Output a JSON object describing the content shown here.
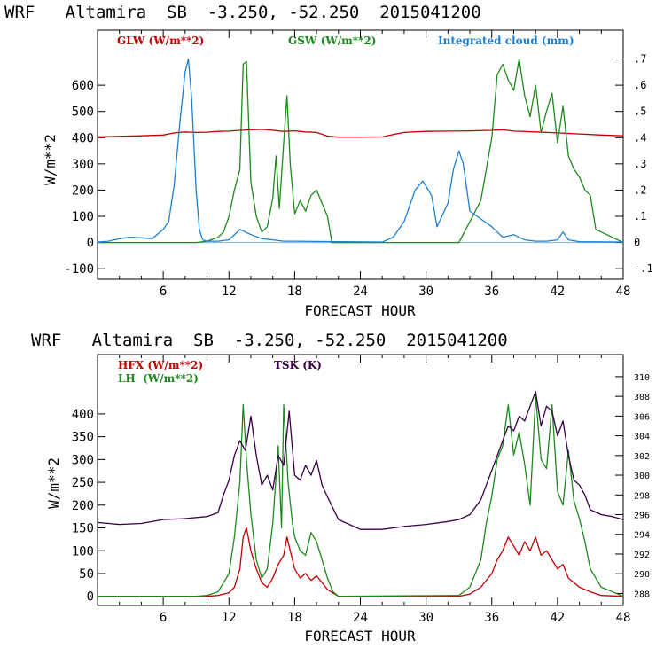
{
  "colors": {
    "red": "#c00000",
    "green": "#1c8a1c",
    "blue": "#1f7fd0",
    "purple": "#3a0045"
  },
  "chart_data": [
    {
      "type": "line",
      "title": "WRF   Altamira  SB  -3.250, -52.250  2015041200",
      "xlabel": "FORECAST HOUR",
      "ylabel": "W/m**2",
      "xlim": [
        0,
        48
      ],
      "ylim": [
        -140,
        810
      ],
      "y2lim": [
        -0.14,
        0.81
      ],
      "xticks": [
        6,
        12,
        18,
        24,
        30,
        36,
        42,
        48
      ],
      "yticks": [
        -100,
        0,
        100,
        200,
        300,
        400,
        500,
        600
      ],
      "y2ticks": [
        -0.1,
        0,
        0.1,
        0.2,
        0.3,
        0.4,
        0.5,
        0.6,
        0.7
      ],
      "y2ticklabels": [
        "-.1",
        "0",
        ".1",
        ".2",
        ".3",
        ".4",
        ".5",
        ".6",
        ".7"
      ],
      "xticklabels": [
        "6",
        "12",
        "18",
        "24",
        "30",
        "36",
        "42",
        "48"
      ],
      "yticklabels": [
        "-100",
        "0",
        "100",
        "200",
        "300",
        "400",
        "500",
        "600"
      ],
      "legend": [
        {
          "label": "GLW (W/m**2)",
          "color": "#c00000"
        },
        {
          "label": "GSW (W/m**2)",
          "color": "#1c8a1c"
        },
        {
          "label": "Integrated cloud (mm)",
          "color": "#1f7fd0"
        }
      ],
      "series": [
        {
          "name": "GLW (W/m**2)",
          "axis": "left",
          "color": "#c00000",
          "x": [
            0,
            2,
            4,
            6,
            7,
            8,
            9,
            10,
            11,
            12,
            13,
            14,
            15,
            16,
            17,
            18,
            19,
            20,
            21,
            22,
            24,
            26,
            27,
            28,
            30,
            32,
            34,
            36,
            37,
            38,
            40,
            42,
            44,
            46,
            48
          ],
          "y": [
            403,
            405,
            407,
            410,
            418,
            422,
            420,
            421,
            424,
            425,
            428,
            430,
            432,
            428,
            424,
            426,
            422,
            420,
            406,
            402,
            402,
            403,
            412,
            420,
            424,
            425,
            426,
            428,
            430,
            425,
            422,
            418,
            414,
            410,
            407
          ]
        },
        {
          "name": "GSW (W/m**2)",
          "axis": "left",
          "color": "#1c8a1c",
          "x": [
            0,
            9,
            10,
            11,
            11.5,
            12,
            12.5,
            13,
            13.3,
            13.6,
            14,
            14.5,
            15,
            15.5,
            16,
            16.3,
            16.6,
            17,
            17.3,
            17.6,
            18,
            18.5,
            19,
            19.5,
            20,
            20.5,
            21,
            21.4,
            22,
            33,
            35,
            36,
            36.5,
            37,
            37.5,
            38,
            38.5,
            39,
            39.5,
            40,
            40.5,
            41,
            41.5,
            42,
            42.5,
            43,
            43.5,
            44,
            44.5,
            45,
            45.5,
            48
          ],
          "y": [
            0,
            0,
            5,
            20,
            40,
            100,
            200,
            280,
            680,
            690,
            230,
            100,
            40,
            60,
            170,
            330,
            130,
            380,
            560,
            300,
            110,
            160,
            120,
            180,
            200,
            150,
            100,
            0,
            0,
            0,
            160,
            400,
            640,
            680,
            620,
            580,
            700,
            560,
            480,
            600,
            420,
            500,
            570,
            380,
            520,
            330,
            280,
            250,
            200,
            180,
            50,
            0
          ]
        },
        {
          "name": "Integrated cloud (mm)",
          "axis": "right",
          "color": "#1f7fd0",
          "x": [
            0,
            1,
            2,
            3,
            4,
            5,
            6,
            6.5,
            7,
            7.5,
            8,
            8.3,
            8.6,
            9,
            9.3,
            9.6,
            10,
            11,
            12,
            13,
            14,
            15,
            16,
            17,
            18,
            20,
            22,
            26,
            27,
            28,
            29,
            29.7,
            30.5,
            31,
            32,
            32.5,
            33,
            33.4,
            34,
            35,
            36,
            37,
            38,
            39,
            40,
            41,
            42,
            42.5,
            43,
            44,
            48
          ],
          "y": [
            0.002,
            0.005,
            0.015,
            0.02,
            0.018,
            0.015,
            0.05,
            0.08,
            0.22,
            0.45,
            0.65,
            0.7,
            0.55,
            0.2,
            0.05,
            0.01,
            0.005,
            0.005,
            0.01,
            0.05,
            0.03,
            0.015,
            0.01,
            0.005,
            0.005,
            0.004,
            0.003,
            0.002,
            0.02,
            0.08,
            0.2,
            0.235,
            0.18,
            0.06,
            0.15,
            0.28,
            0.35,
            0.3,
            0.12,
            0.09,
            0.06,
            0.02,
            0.03,
            0.01,
            0.005,
            0.005,
            0.01,
            0.04,
            0.01,
            0.003,
            0.002
          ]
        }
      ]
    },
    {
      "type": "line",
      "title": "WRF   Altamira  SB  -3.250, -52.250  2015041200",
      "xlabel": "FORECAST HOUR",
      "ylabel": "W/m**2",
      "xlim": [
        0,
        48
      ],
      "ylim": [
        -20,
        530
      ],
      "y2lim": [
        286.78,
        312.24
      ],
      "xticks": [
        6,
        12,
        18,
        24,
        30,
        36,
        42,
        48
      ],
      "yticks": [
        0,
        50,
        100,
        150,
        200,
        250,
        300,
        350,
        400
      ],
      "y2ticks": [
        288,
        290,
        292,
        294,
        296,
        298,
        300,
        302,
        304,
        306,
        308,
        310
      ],
      "xticklabels": [
        "6",
        "12",
        "18",
        "24",
        "30",
        "36",
        "42",
        "48"
      ],
      "yticklabels": [
        "0",
        "50",
        "100",
        "150",
        "200",
        "250",
        "300",
        "350",
        "400"
      ],
      "y2ticklabels": [
        "288",
        "290",
        "292",
        "294",
        "296",
        "298",
        "300",
        "302",
        "304",
        "306",
        "308",
        "310"
      ],
      "legend": [
        {
          "label": "HFX (W/m**2)",
          "color": "#c00000"
        },
        {
          "label": "LH  (W/m**2)",
          "color": "#1c8a1c"
        },
        {
          "label": "TSK (K)",
          "color": "#3a0045"
        }
      ],
      "series": [
        {
          "name": "HFX (W/m**2)",
          "axis": "left",
          "color": "#c00000",
          "x": [
            0,
            10,
            11,
            12,
            12.5,
            13,
            13.3,
            13.6,
            14,
            14.5,
            15,
            15.5,
            16,
            16.5,
            17,
            17.3,
            17.6,
            18,
            18.5,
            19,
            19.5,
            20,
            20.5,
            21,
            22,
            33,
            34,
            35,
            36,
            36.5,
            37,
            37.5,
            38,
            38.5,
            39,
            39.5,
            40,
            40.5,
            41,
            41.5,
            42,
            42.5,
            43,
            43.5,
            44,
            45,
            46,
            48
          ],
          "y": [
            0,
            0,
            2,
            8,
            20,
            60,
            130,
            150,
            100,
            60,
            30,
            20,
            40,
            70,
            90,
            130,
            100,
            60,
            40,
            50,
            35,
            45,
            30,
            15,
            0,
            0,
            5,
            20,
            50,
            80,
            100,
            130,
            110,
            90,
            120,
            100,
            130,
            90,
            100,
            80,
            60,
            70,
            40,
            30,
            20,
            10,
            2,
            0
          ]
        },
        {
          "name": "LH  (W/m**2)",
          "axis": "left",
          "color": "#1c8a1c",
          "x": [
            0,
            9,
            10,
            11,
            11.5,
            12,
            12.5,
            13,
            13.3,
            13.6,
            14,
            14.5,
            15,
            15.5,
            16,
            16.5,
            16.8,
            17,
            17.4,
            17.8,
            18,
            18.5,
            19,
            19.5,
            20,
            20.5,
            21,
            21.5,
            22,
            33,
            34,
            35,
            35.5,
            36,
            36.5,
            37,
            37.5,
            38,
            38.5,
            39,
            39.5,
            40,
            40.5,
            41,
            41.5,
            42,
            42.5,
            43,
            43.5,
            44,
            44.5,
            45,
            46,
            48
          ],
          "y": [
            0,
            0,
            2,
            10,
            30,
            50,
            130,
            250,
            420,
            300,
            180,
            80,
            40,
            60,
            160,
            330,
            150,
            420,
            250,
            160,
            130,
            100,
            90,
            140,
            120,
            80,
            40,
            10,
            0,
            2,
            20,
            80,
            160,
            220,
            300,
            330,
            420,
            310,
            360,
            290,
            200,
            440,
            300,
            280,
            420,
            230,
            200,
            320,
            210,
            170,
            120,
            60,
            20,
            0
          ]
        },
        {
          "name": "TSK (K)",
          "axis": "right",
          "color": "#3a0045",
          "x": [
            0,
            2,
            4,
            6,
            8,
            10,
            11,
            11.5,
            12,
            12.5,
            13,
            13.5,
            14,
            14.5,
            15,
            15.5,
            16,
            16.5,
            17,
            17.5,
            18,
            18.5,
            19,
            19.5,
            20,
            20.5,
            21,
            22,
            24,
            26,
            28,
            30,
            32,
            33,
            34,
            35,
            36,
            37,
            37.5,
            38,
            38.5,
            39,
            39.5,
            40,
            40.5,
            41,
            41.5,
            42,
            42.5,
            43,
            43.5,
            44,
            44.5,
            45,
            46,
            47,
            48
          ],
          "y": [
            295.2,
            295.0,
            295.1,
            295.5,
            295.6,
            295.8,
            296.2,
            298.0,
            299.5,
            302.0,
            303.5,
            302.5,
            306.0,
            302.0,
            299.0,
            300.0,
            298.5,
            302.0,
            301.0,
            306.5,
            300.0,
            299.5,
            301.0,
            300.0,
            301.5,
            299.0,
            297.8,
            295.5,
            294.5,
            294.5,
            294.8,
            295.0,
            295.3,
            295.5,
            296.0,
            297.5,
            300.5,
            303.5,
            305.0,
            304.5,
            306.0,
            305.5,
            307.0,
            308.5,
            305.0,
            307.0,
            306.5,
            304.0,
            305.5,
            302.0,
            299.5,
            299.0,
            298.0,
            296.5,
            296.0,
            295.8,
            295.5
          ]
        }
      ]
    }
  ]
}
